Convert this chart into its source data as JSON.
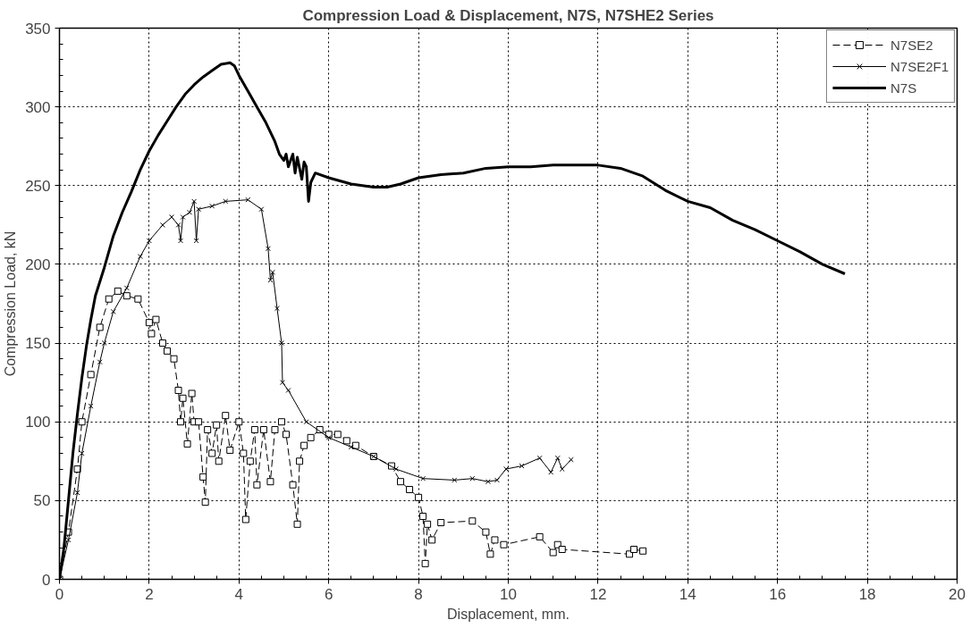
{
  "chart_data": {
    "type": "line",
    "title": "Compression Load & Displacement, N7S, N7SHE2 Series",
    "xlabel": "Displacement, mm.",
    "ylabel": "Compression Load, kN",
    "xlim": [
      0,
      20
    ],
    "xticks": [
      0,
      2,
      4,
      6,
      8,
      10,
      12,
      14,
      16,
      18,
      20
    ],
    "ylim": [
      0,
      350
    ],
    "yticks": [
      0,
      50,
      100,
      150,
      200,
      250,
      300,
      350
    ],
    "grid": true,
    "legend": "top right",
    "series": [
      {
        "name": "N7SE2",
        "color": "#000000",
        "marker": "square",
        "line_style": "dashed",
        "x": [
          0,
          0.2,
          0.4,
          0.5,
          0.7,
          0.9,
          1.1,
          1.3,
          1.5,
          1.75,
          2.0,
          2.05,
          2.15,
          2.3,
          2.4,
          2.55,
          2.65,
          2.7,
          2.75,
          2.85,
          2.95,
          3.0,
          3.1,
          3.2,
          3.25,
          3.3,
          3.4,
          3.5,
          3.55,
          3.7,
          3.8,
          4.0,
          4.1,
          4.15,
          4.25,
          4.35,
          4.4,
          4.55,
          4.7,
          4.8,
          4.95,
          5.05,
          5.2,
          5.3,
          5.35,
          5.45,
          5.6,
          5.8,
          6.0,
          6.2,
          6.4,
          6.6,
          7.0,
          7.4,
          7.6,
          7.8,
          8.0,
          8.1,
          8.15,
          8.2,
          8.3,
          8.5,
          9.2,
          9.5,
          9.6,
          9.7,
          9.9,
          10.7,
          11.0,
          11.1,
          11.2,
          12.7,
          12.8,
          13.0
        ],
        "values": [
          0,
          30,
          70,
          100,
          130,
          160,
          178,
          183,
          180,
          178,
          163,
          156,
          165,
          150,
          145,
          140,
          120,
          100,
          115,
          86,
          118,
          100,
          100,
          65,
          49,
          95,
          80,
          98,
          75,
          104,
          82,
          100,
          80,
          38,
          75,
          95,
          60,
          95,
          62,
          95,
          100,
          92,
          60,
          35,
          75,
          85,
          90,
          95,
          92,
          92,
          88,
          85,
          78,
          72,
          62,
          57,
          52,
          40,
          10,
          35,
          25,
          36,
          37,
          30,
          16,
          25,
          22,
          27,
          17,
          22,
          19,
          16,
          19,
          18
        ]
      },
      {
        "name": "N7SE2F1",
        "color": "#000000",
        "marker": "cross",
        "line_style": "solid",
        "x": [
          0,
          0.2,
          0.4,
          0.5,
          0.7,
          0.9,
          1.0,
          1.2,
          1.5,
          1.8,
          2.0,
          2.3,
          2.5,
          2.65,
          2.7,
          2.75,
          2.9,
          3.0,
          3.05,
          3.1,
          3.4,
          3.7,
          4.2,
          4.5,
          4.65,
          4.7,
          4.75,
          4.85,
          4.95,
          4.97,
          5.1,
          5.5,
          6.0,
          6.5,
          7.0,
          7.5,
          8.1,
          8.8,
          9.2,
          9.55,
          9.75,
          9.95,
          10.3,
          10.7,
          10.95,
          11.1,
          11.2,
          11.4
        ],
        "values": [
          0,
          25,
          55,
          80,
          110,
          138,
          150,
          170,
          185,
          205,
          215,
          225,
          230,
          225,
          215,
          230,
          233,
          240,
          215,
          235,
          237,
          240,
          241,
          235,
          210,
          190,
          195,
          172,
          150,
          125,
          120,
          100,
          90,
          84,
          78,
          70,
          64,
          63,
          64,
          62,
          63,
          70,
          72,
          77,
          68,
          77,
          70,
          76
        ]
      },
      {
        "name": "N7S",
        "color": "#000000",
        "marker": "none",
        "line_style": "solid",
        "x": [
          0,
          0.1,
          0.2,
          0.3,
          0.4,
          0.5,
          0.6,
          0.7,
          0.8,
          1.0,
          1.2,
          1.4,
          1.6,
          1.8,
          2.0,
          2.2,
          2.4,
          2.6,
          2.8,
          3.0,
          3.2,
          3.4,
          3.6,
          3.8,
          3.9,
          4.0,
          4.2,
          4.4,
          4.6,
          4.8,
          4.9,
          5.0,
          5.05,
          5.1,
          5.2,
          5.25,
          5.3,
          5.4,
          5.45,
          5.5,
          5.55,
          5.6,
          5.7,
          6.0,
          6.5,
          7.0,
          7.3,
          7.6,
          8.0,
          8.5,
          9.0,
          9.5,
          10.0,
          10.5,
          11.0,
          11.5,
          12.0,
          12.5,
          13.0,
          13.5,
          14.0,
          14.5,
          15.0,
          15.5,
          16.0,
          16.5,
          17.0,
          17.5
        ],
        "values": [
          0,
          20,
          50,
          80,
          105,
          128,
          148,
          165,
          180,
          198,
          218,
          233,
          246,
          260,
          272,
          282,
          291,
          300,
          308,
          314,
          319,
          323,
          327,
          328,
          326,
          320,
          310,
          300,
          290,
          278,
          270,
          266,
          270,
          262,
          270,
          258,
          268,
          254,
          265,
          262,
          240,
          252,
          258,
          255,
          251,
          249,
          249,
          251,
          255,
          257,
          258,
          261,
          262,
          262,
          263,
          263,
          263,
          261,
          256,
          247,
          240,
          236,
          228,
          222,
          215,
          208,
          200,
          194
        ]
      }
    ]
  }
}
